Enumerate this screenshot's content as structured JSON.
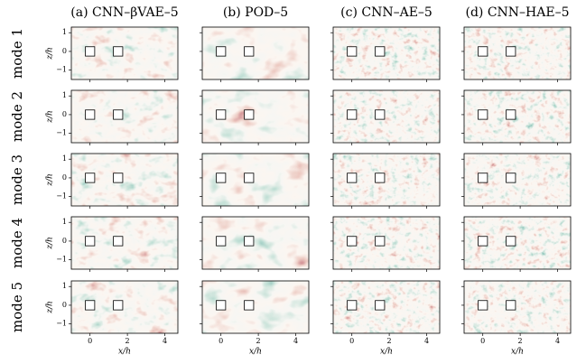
{
  "columns": [
    "(a) CNN–βVAE–5",
    "(b) POD–5",
    "(c) CNN–AE–5",
    "(d) CNN–HAE–5"
  ],
  "rows": [
    "mode 1",
    "mode 2",
    "mode 3",
    "mode 4",
    "mode 5"
  ],
  "axes": {
    "xlabel": "x/h",
    "ylabel": "z/h",
    "xlim": [
      -1,
      4.7
    ],
    "ylim": [
      -1.5,
      1.3
    ],
    "xticks": [
      0,
      2,
      4
    ],
    "yticks": [
      {
        "value": -1,
        "label": "−1"
      },
      0,
      1
    ]
  }
}
